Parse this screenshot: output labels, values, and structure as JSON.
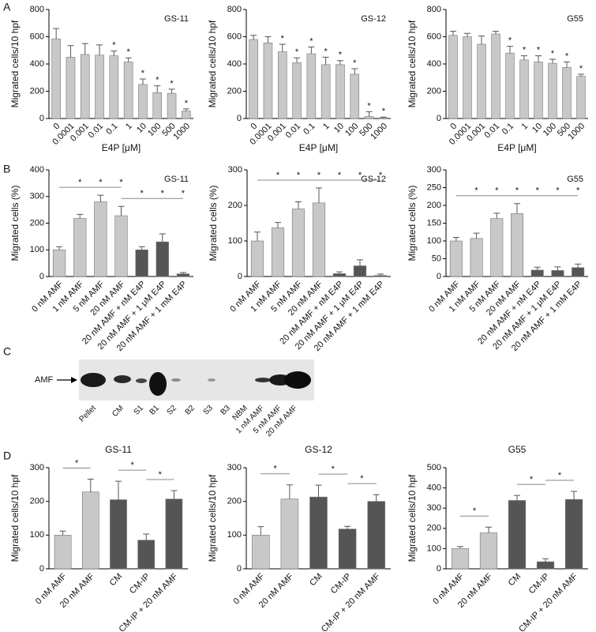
{
  "panel_labels": [
    "A",
    "B",
    "C",
    "D"
  ],
  "blot": {
    "label": "AMF",
    "lanes": [
      "Pellet",
      "CM",
      "S1",
      "B1",
      "S2",
      "B2",
      "S3",
      "B3",
      "NBM",
      "1 nM AMF",
      "5 nM AMF",
      "20 nM AMF"
    ]
  },
  "chart_data": [
    {
      "type": "bar",
      "title": "GS-11",
      "xlabel": "E4P [μM]",
      "ylabel": "Migrated cells/10 hpf",
      "categories": [
        "0",
        "0.0001",
        "0.001",
        "0.01",
        "0.1",
        "1",
        "10",
        "100",
        "500",
        "1000"
      ],
      "values": [
        585,
        450,
        470,
        465,
        460,
        415,
        250,
        190,
        185,
        55
      ],
      "errors": [
        75,
        85,
        80,
        75,
        35,
        30,
        40,
        50,
        30,
        15
      ],
      "significance": [
        null,
        null,
        null,
        null,
        "*",
        "*",
        "*",
        "*",
        "*",
        "*"
      ],
      "color": "#c8c8c8",
      "ylim": [
        0,
        800
      ],
      "yticks": [
        0,
        200,
        400,
        600,
        800
      ]
    },
    {
      "type": "bar",
      "title": "GS-12",
      "xlabel": "E4P [μM]",
      "ylabel": "Migrated cells/10 hpf",
      "categories": [
        "0",
        "0.0001",
        "0.001",
        "0.01",
        "0.1",
        "1",
        "10",
        "100",
        "500",
        "1000"
      ],
      "values": [
        580,
        555,
        490,
        410,
        475,
        395,
        395,
        325,
        15,
        5
      ],
      "errors": [
        30,
        45,
        55,
        35,
        50,
        55,
        30,
        40,
        35,
        5
      ],
      "significance": [
        null,
        null,
        "*",
        "*",
        "*",
        "*",
        "*",
        "*",
        "*",
        "*"
      ],
      "color": "#c8c8c8",
      "ylim": [
        0,
        800
      ],
      "yticks": [
        0,
        200,
        400,
        600,
        800
      ]
    },
    {
      "type": "bar",
      "title": "G55",
      "xlabel": "E4P [μM]",
      "ylabel": "Migrated cells/10 hpf",
      "categories": [
        "0",
        "0.0001",
        "0.001",
        "0.01",
        "0.1",
        "1",
        "10",
        "100",
        "500",
        "1000"
      ],
      "values": [
        610,
        600,
        545,
        620,
        480,
        430,
        415,
        405,
        375,
        310
      ],
      "errors": [
        30,
        25,
        60,
        20,
        50,
        30,
        45,
        30,
        40,
        15
      ],
      "significance": [
        null,
        null,
        null,
        null,
        "*",
        "*",
        "*",
        "*",
        "*",
        "*"
      ],
      "color": "#c8c8c8",
      "ylim": [
        0,
        800
      ],
      "yticks": [
        0,
        200,
        400,
        600,
        800
      ]
    },
    {
      "type": "bar",
      "title": "GS-11",
      "ylabel": "Migrated cells (%)",
      "categories": [
        "0 nM AMF",
        "1 nM AMF",
        "5 nM AMF",
        "20 nM AMF",
        "20 nM AMF + nM E4P",
        "20 nM AMF + 1 μM E4P",
        "20 nM AMF + 1 mM E4P"
      ],
      "values": [
        100,
        218,
        280,
        228,
        100,
        130,
        10
      ],
      "errors": [
        12,
        15,
        25,
        35,
        12,
        30,
        5
      ],
      "significance": [
        null,
        "*",
        "*",
        "*",
        "*",
        "*",
        "*"
      ],
      "brackets": [
        {
          "from": 0,
          "to": 3
        },
        {
          "from": 3,
          "to": 6
        }
      ],
      "colors": [
        "#c8c8c8",
        "#c8c8c8",
        "#c8c8c8",
        "#c8c8c8",
        "#555555",
        "#555555",
        "#555555"
      ],
      "ylim": [
        0,
        400
      ],
      "yticks": [
        0,
        100,
        200,
        300,
        400
      ]
    },
    {
      "type": "bar",
      "title": "GS-12",
      "ylabel": "Migrated cells (%)",
      "categories": [
        "0 nM AMF",
        "1 nM AMF",
        "5 nM AMF",
        "20 nM AMF",
        "20 nM AMF + nM E4P",
        "20 nM AMF + 1 μM E4P",
        "20 nM AMF + 1 mM E4P"
      ],
      "values": [
        100,
        137,
        190,
        207,
        8,
        30,
        3
      ],
      "errors": [
        25,
        15,
        20,
        42,
        5,
        17,
        4
      ],
      "significance": [
        null,
        "*",
        "*",
        "*",
        "*",
        "*",
        "*"
      ],
      "brackets": [
        {
          "from": 0,
          "to": 3
        },
        {
          "from": 3,
          "to": 6
        }
      ],
      "colors": [
        "#c8c8c8",
        "#c8c8c8",
        "#c8c8c8",
        "#c8c8c8",
        "#555555",
        "#555555",
        "#555555"
      ],
      "ylim": [
        0,
        300
      ],
      "yticks": [
        0,
        100,
        200,
        300
      ]
    },
    {
      "type": "bar",
      "title": "G55",
      "ylabel": "Migrated cells (%)",
      "categories": [
        "0 nM AMF",
        "1 nM AMF",
        "5 nM AMF",
        "20 nM AMF",
        "20 nM AMF + nM E4P",
        "20 nM AMF + 1 μM E4P",
        "20 nM AMF + 1 mM E4P"
      ],
      "values": [
        100,
        107,
        163,
        177,
        18,
        17,
        25
      ],
      "errors": [
        10,
        15,
        15,
        28,
        8,
        10,
        10
      ],
      "significance": [
        null,
        "*",
        "*",
        "*",
        "*",
        "*",
        "*"
      ],
      "brackets": [
        {
          "from": 0,
          "to": 3
        },
        {
          "from": 3,
          "to": 6
        }
      ],
      "colors": [
        "#c8c8c8",
        "#c8c8c8",
        "#c8c8c8",
        "#c8c8c8",
        "#555555",
        "#555555",
        "#555555"
      ],
      "ylim": [
        0,
        300
      ],
      "yticks": [
        0,
        50,
        100,
        150,
        200,
        250,
        300
      ]
    },
    {
      "type": "bar",
      "title": "GS-11",
      "ylabel": "Migrated cells/10 hpf",
      "categories": [
        "0 nM AMF",
        "20 nM AMF",
        "CM",
        "CM-IP",
        "CM-IP + 20 nM AMF"
      ],
      "values": [
        100,
        228,
        205,
        85,
        207
      ],
      "errors": [
        12,
        38,
        55,
        18,
        25
      ],
      "brackets": [
        {
          "from": 0,
          "to": 1,
          "label": "*"
        },
        {
          "from": 2,
          "to": 3,
          "label": "*"
        },
        {
          "from": 3,
          "to": 4,
          "label": "*"
        }
      ],
      "colors": [
        "#c8c8c8",
        "#c8c8c8",
        "#555555",
        "#555555",
        "#555555"
      ],
      "ylim": [
        0,
        300
      ],
      "yticks": [
        0,
        100,
        200,
        300
      ]
    },
    {
      "type": "bar",
      "title": "GS-12",
      "ylabel": "Migrated cells/10 hpf",
      "categories": [
        "0 nM AMF",
        "20 nM AMF",
        "CM",
        "CM-IP",
        "CM-IP + 20 nM AMF"
      ],
      "values": [
        100,
        207,
        213,
        118,
        200
      ],
      "errors": [
        25,
        42,
        35,
        8,
        20
      ],
      "brackets": [
        {
          "from": 0,
          "to": 1,
          "label": "*"
        },
        {
          "from": 2,
          "to": 3,
          "label": "*"
        },
        {
          "from": 3,
          "to": 4,
          "label": "*"
        }
      ],
      "colors": [
        "#c8c8c8",
        "#c8c8c8",
        "#555555",
        "#555555",
        "#555555"
      ],
      "ylim": [
        0,
        300
      ],
      "yticks": [
        0,
        100,
        200,
        300
      ]
    },
    {
      "type": "bar",
      "title": "G55",
      "ylabel": "Migrated cells/10 hpf",
      "categories": [
        "0 nM AMF",
        "20 nM AMF",
        "CM",
        "CM-IP",
        "CM-IP + 20 nM AMF"
      ],
      "values": [
        100,
        178,
        338,
        35,
        343
      ],
      "errors": [
        10,
        28,
        25,
        15,
        40
      ],
      "brackets": [
        {
          "from": 0,
          "to": 1,
          "label": "*"
        },
        {
          "from": 2,
          "to": 3,
          "label": "*"
        },
        {
          "from": 3,
          "to": 4,
          "label": "*"
        }
      ],
      "colors": [
        "#c8c8c8",
        "#c8c8c8",
        "#555555",
        "#555555",
        "#555555"
      ],
      "ylim": [
        0,
        500
      ],
      "yticks": [
        0,
        100,
        200,
        300,
        400,
        500
      ]
    }
  ]
}
